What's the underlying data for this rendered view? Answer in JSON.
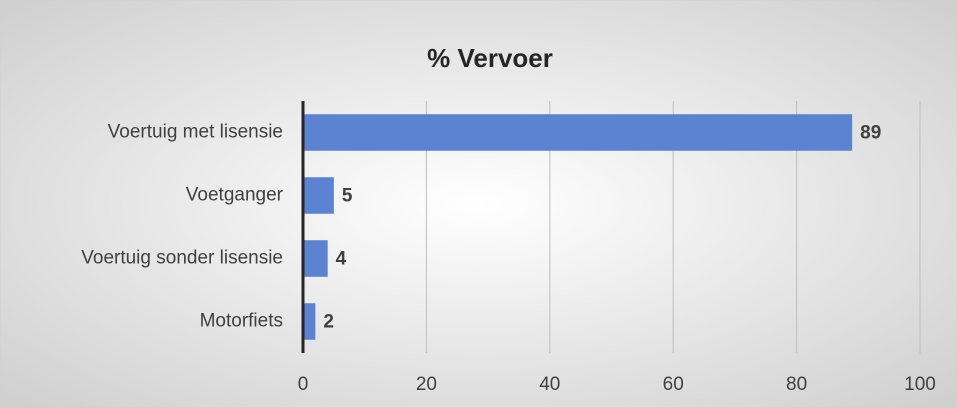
{
  "chart_data": {
    "type": "bar",
    "orientation": "horizontal",
    "title": "% Vervoer",
    "categories": [
      "Voertuig met lisensie",
      "Voetganger",
      "Voertuig sonder lisensie",
      "Motorfiets"
    ],
    "values": [
      89,
      5,
      4,
      2
    ],
    "color": "#5b83d2",
    "xlim": [
      0,
      100
    ],
    "xticks": [
      0,
      20,
      40,
      60,
      80,
      100
    ],
    "grid": true
  }
}
